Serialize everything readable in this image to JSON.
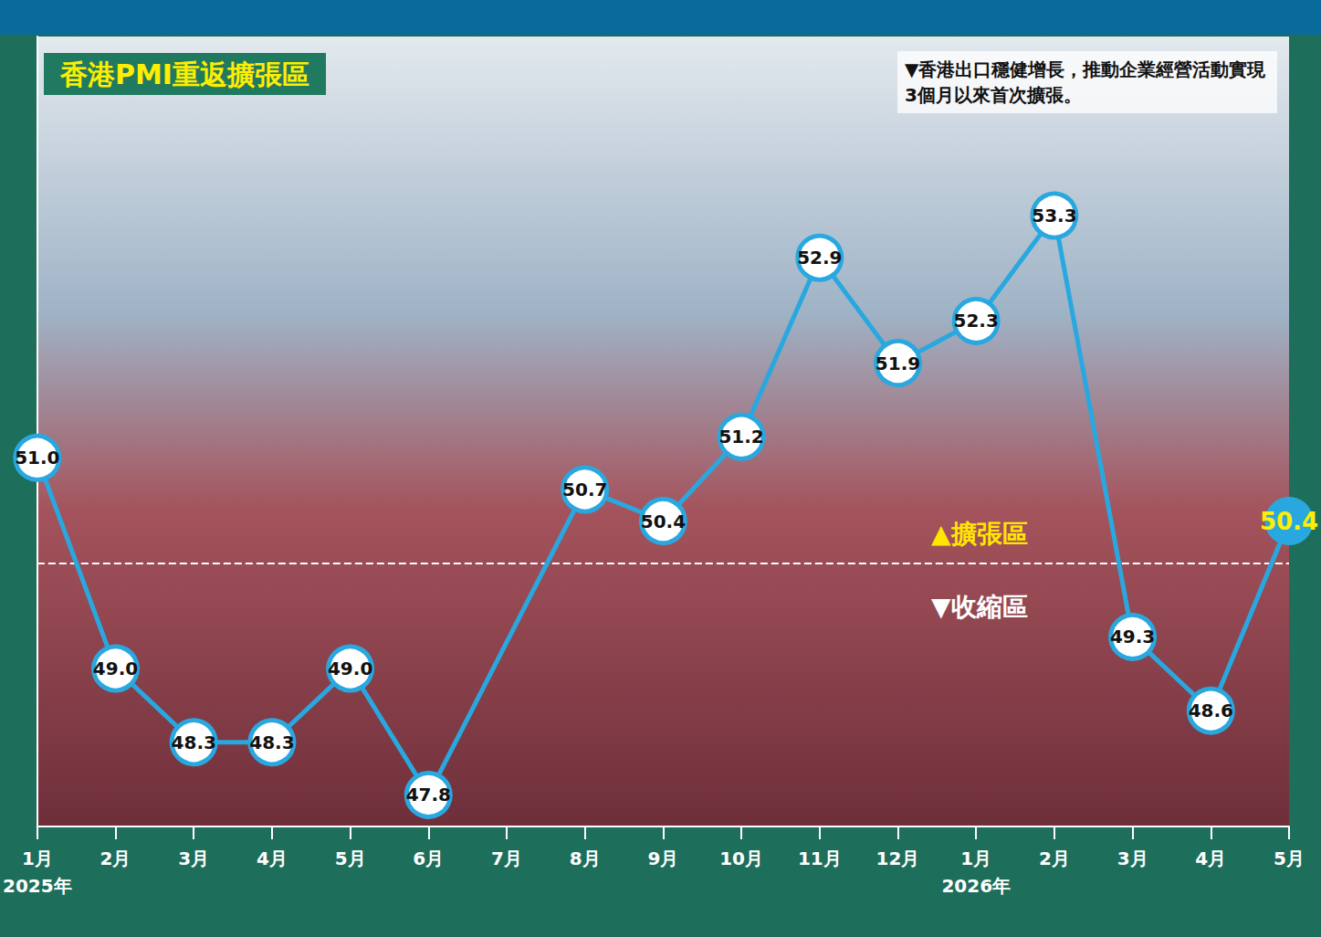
{
  "chart_data": {
    "type": "line",
    "title": "香港PMI重返擴張區",
    "subtitle": "▼香港出口穩健增長，推動企業經營活動實現3個月以來首次擴張。",
    "annotations": [
      "▲擴張區",
      "▼收縮區"
    ],
    "categories": [
      "1月\n2025年",
      "2月",
      "3月",
      "4月",
      "5月",
      "6月",
      "7月",
      "8月",
      "9月",
      "10月",
      "11月",
      "12月",
      "1月\n2026年",
      "2月",
      "3月",
      "4月",
      "5月"
    ],
    "values": [
      51.0,
      49.0,
      48.3,
      48.3,
      49.0,
      47.8,
      null,
      50.7,
      50.4,
      51.2,
      52.9,
      51.9,
      52.3,
      53.3,
      49.3,
      48.6,
      50.4
    ],
    "value_labels": [
      "51.0",
      "49.0",
      "48.3",
      "48.3",
      "49.0",
      "47.8",
      null,
      "50.7",
      "50.4",
      "51.2",
      "52.9",
      "51.9",
      "52.3",
      "53.3",
      "49.3",
      "48.6",
      "50.4"
    ],
    "color": "#29a8e0",
    "ylim": [
      47.5,
      55
    ],
    "yticks": [
      50
    ],
    "grid": true,
    "data_labels": true,
    "tick_labels": "x",
    "marker": "circle"
  }
}
